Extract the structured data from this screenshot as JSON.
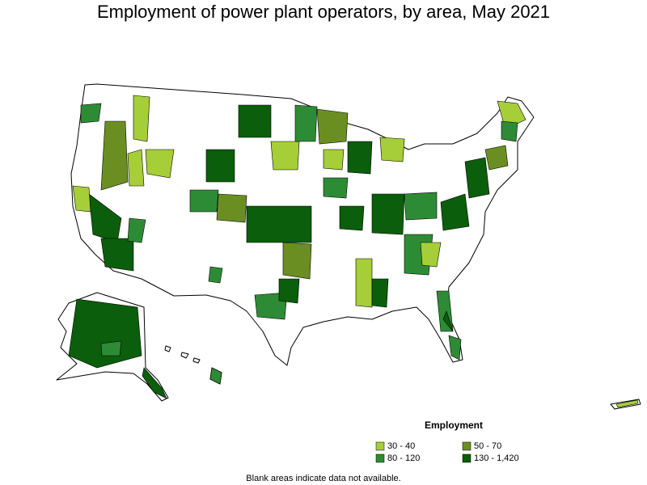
{
  "title": "Employment of power plant operators, by area, May 2021",
  "legend": {
    "title": "Employment",
    "items": [
      {
        "label": "30 - 40",
        "color": "#a6ce39"
      },
      {
        "label": "50 - 70",
        "color": "#6b8e23"
      },
      {
        "label": "80 - 120",
        "color": "#2e8b35"
      },
      {
        "label": "130 - 1,420",
        "color": "#0b5e0b"
      }
    ]
  },
  "note": "Blank areas indicate data not available."
}
